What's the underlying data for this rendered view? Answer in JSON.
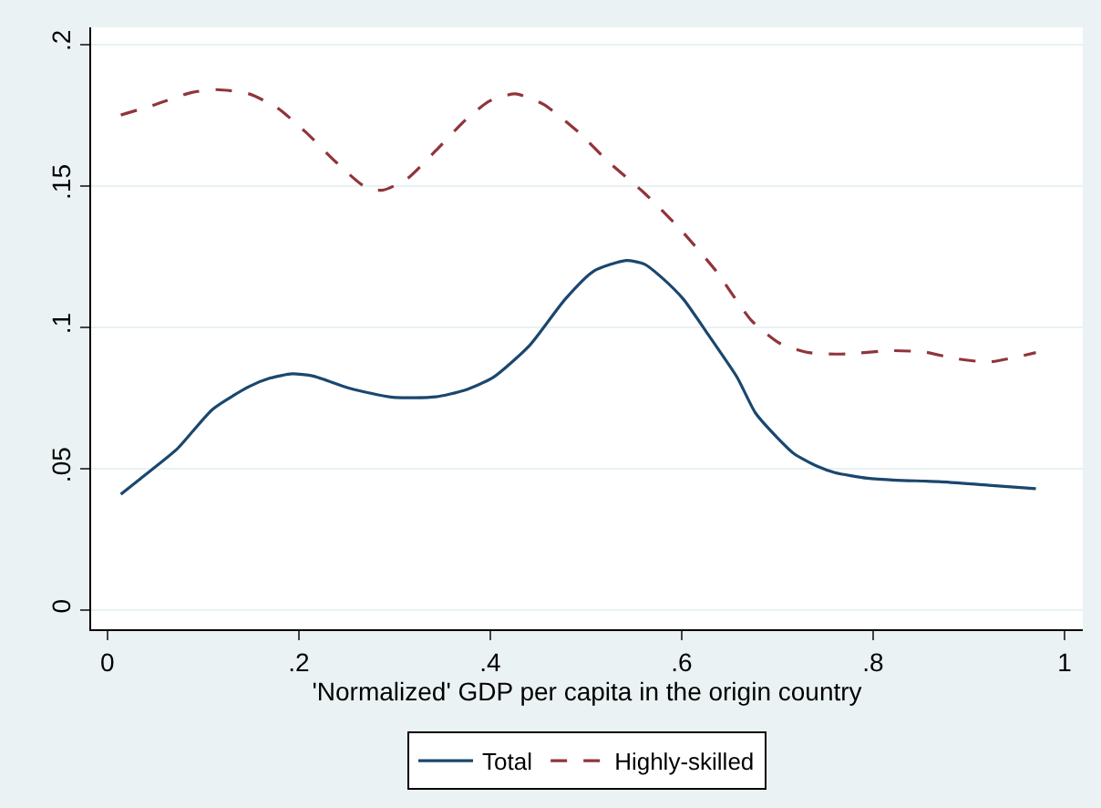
{
  "chart_data": {
    "type": "line",
    "xlabel": "'Normalized' GDP per capita in the origin country",
    "xlim": [
      -0.017,
      1.019
    ],
    "ylim": [
      -0.0068,
      0.206
    ],
    "xticks": [
      {
        "value": 0,
        "label": "0"
      },
      {
        "value": 0.2,
        "label": ".2"
      },
      {
        "value": 0.4,
        "label": ".4"
      },
      {
        "value": 0.6,
        "label": ".6"
      },
      {
        "value": 0.8,
        "label": ".8"
      },
      {
        "value": 1,
        "label": "1"
      }
    ],
    "yticks": [
      {
        "value": 0,
        "label": "0"
      },
      {
        "value": 0.05,
        "label": ".05"
      },
      {
        "value": 0.1,
        "label": ".1"
      },
      {
        "value": 0.15,
        "label": ".15"
      },
      {
        "value": 0.2,
        "label": ".2"
      }
    ],
    "grid": "y",
    "legend": "bottom",
    "series": [
      {
        "name": "Total",
        "color": "#1a476f",
        "line_style": "solid",
        "x": [
          0.014,
          0.035,
          0.073,
          0.11,
          0.148,
          0.17,
          0.193,
          0.215,
          0.253,
          0.298,
          0.343,
          0.373,
          0.403,
          0.441,
          0.478,
          0.508,
          0.542,
          0.561,
          0.58,
          0.602,
          0.628,
          0.658,
          0.677,
          0.7,
          0.718,
          0.741,
          0.76,
          0.794,
          0.824,
          0.869,
          0.921,
          0.97
        ],
        "values": [
          0.0409,
          0.0466,
          0.057,
          0.071,
          0.079,
          0.082,
          0.0835,
          0.0827,
          0.0784,
          0.0752,
          0.0754,
          0.0777,
          0.0822,
          0.0935,
          0.1098,
          0.1198,
          0.1236,
          0.1223,
          0.1173,
          0.1098,
          0.0972,
          0.0822,
          0.0697,
          0.0609,
          0.0551,
          0.0509,
          0.0486,
          0.0466,
          0.0459,
          0.0454,
          0.0441,
          0.0429
        ]
      },
      {
        "name": "Highly-skilled",
        "color": "#90353b",
        "line_style": "dashed",
        "x": [
          0.014,
          0.05,
          0.088,
          0.114,
          0.148,
          0.178,
          0.208,
          0.238,
          0.268,
          0.287,
          0.313,
          0.343,
          0.373,
          0.399,
          0.426,
          0.456,
          0.493,
          0.523,
          0.561,
          0.598,
          0.636,
          0.673,
          0.703,
          0.733,
          0.771,
          0.817,
          0.854,
          0.884,
          0.921,
          0.97
        ],
        "values": [
          0.175,
          0.1787,
          0.183,
          0.184,
          0.1825,
          0.1774,
          0.1687,
          0.1586,
          0.1499,
          0.1484,
          0.1524,
          0.1624,
          0.1729,
          0.1799,
          0.1825,
          0.1787,
          0.1687,
          0.1586,
          0.1474,
          0.1348,
          0.1198,
          0.1023,
          0.0942,
          0.091,
          0.0905,
          0.0917,
          0.0912,
          0.089,
          0.0877,
          0.091
        ]
      }
    ]
  }
}
